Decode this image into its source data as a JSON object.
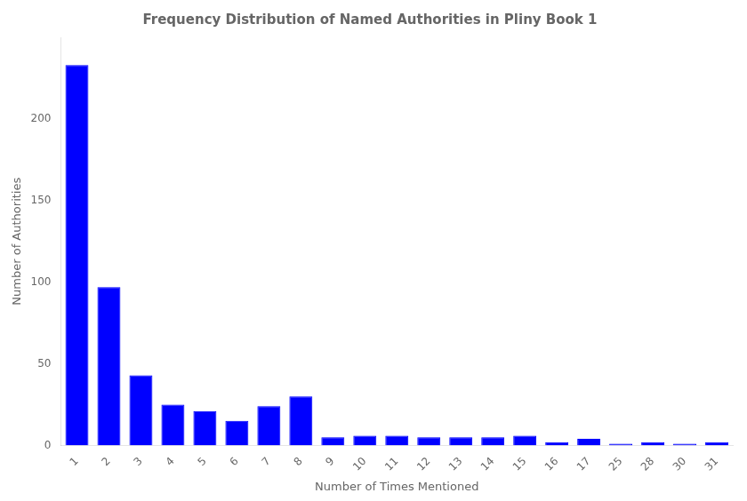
{
  "chart_data": {
    "type": "bar",
    "title": "Frequency Distribution of Named Authorities in Pliny Book 1",
    "xlabel": "Number of Times Mentioned",
    "ylabel": "Number of Authorities",
    "categories": [
      1,
      2,
      3,
      4,
      5,
      6,
      7,
      8,
      9,
      10,
      11,
      12,
      13,
      14,
      15,
      16,
      17,
      25,
      28,
      30,
      31
    ],
    "values": [
      233,
      97,
      43,
      25,
      21,
      15,
      24,
      30,
      5,
      6,
      6,
      5,
      5,
      5,
      6,
      2,
      4,
      1,
      2,
      1,
      2
    ],
    "color": "#0000ff",
    "ylim": [
      0,
      250
    ],
    "yticks": [
      0,
      50,
      100,
      150,
      200
    ],
    "grid": false
  }
}
